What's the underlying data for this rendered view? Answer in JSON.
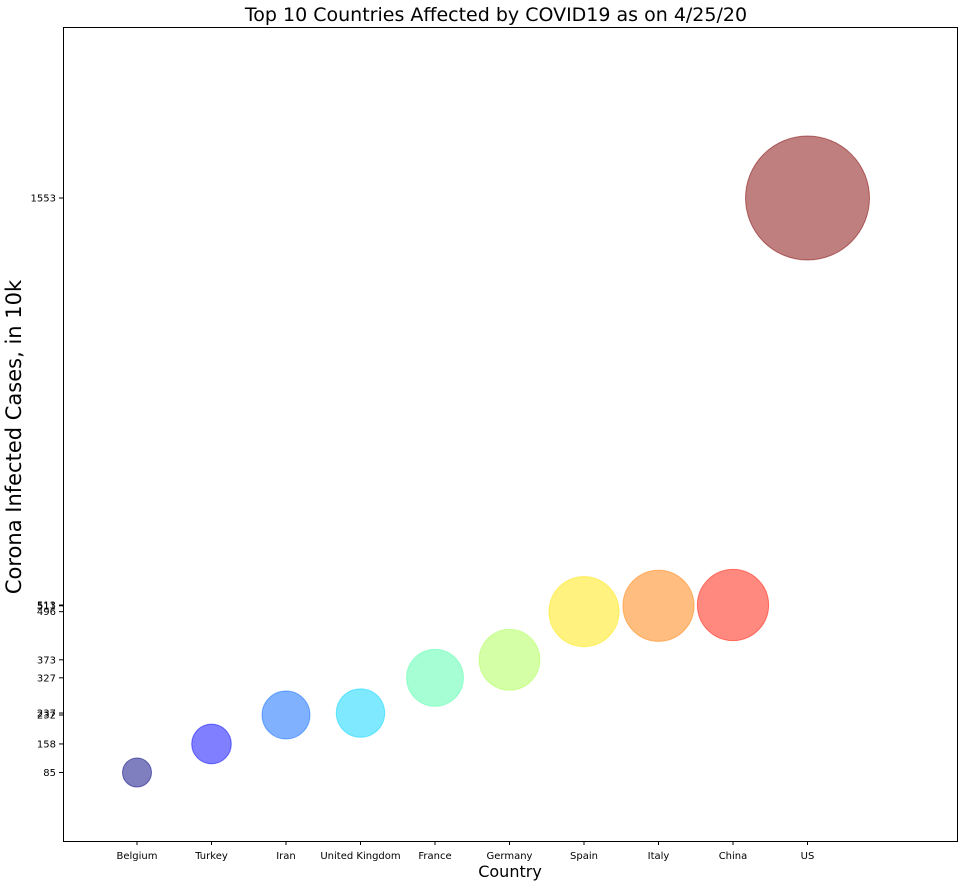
{
  "chart_data": {
    "type": "bubble",
    "title": "Top 10 Countries Affected by COVID19 as on 4/25/20",
    "xlabel": "Country",
    "ylabel": "Corona Infected Cases, in 10k",
    "categories": [
      "Belgium",
      "Turkey",
      "Iran",
      "United Kingdom",
      "France",
      "Germany",
      "Spain",
      "Italy",
      "China",
      "US"
    ],
    "values": [
      85,
      158,
      232,
      237,
      327,
      373,
      496,
      511,
      513,
      1553
    ],
    "ytick_labels": [
      "85",
      "158",
      "232",
      "237",
      "327",
      "373",
      "496",
      "511",
      "513",
      "1553"
    ],
    "ylim": [
      -90,
      1990
    ],
    "grid": false,
    "colors": [
      "#00007f",
      "#0000ff",
      "#0063ff",
      "#00d4ff",
      "#4dffa9",
      "#a9ff4d",
      "#ffe500",
      "#ff7e00",
      "#ff1400",
      "#7f0000"
    ],
    "bubble_opacity": 0.5
  }
}
